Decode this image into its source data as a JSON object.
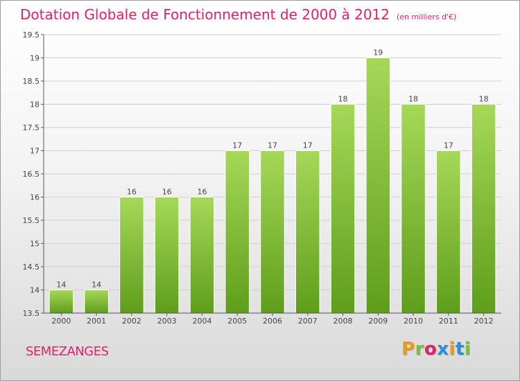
{
  "header": {
    "title": "Dotation Globale de Fonctionnement de 2000 à 2012",
    "subtitle": "(en milliers d'€)"
  },
  "footer": {
    "commune": "SEMEZANGES",
    "logo_text": "Proxiti",
    "logo_colors": [
      "#e69a1f",
      "#7dbf3a",
      "#e0206a",
      "#2a8fd8",
      "#e69a1f",
      "#2a8fd8",
      "#7dbf3a"
    ]
  },
  "colors": {
    "bar_top": "#a6d858",
    "bar_bottom": "#5e9e1a",
    "title": "#e0206a"
  },
  "chart_data": {
    "type": "bar",
    "title": "Dotation Globale de Fonctionnement de 2000 à 2012",
    "subtitle": "(en milliers d'€)",
    "categories": [
      "2000",
      "2001",
      "2002",
      "2003",
      "2004",
      "2005",
      "2006",
      "2007",
      "2008",
      "2009",
      "2010",
      "2011",
      "2012"
    ],
    "values": [
      14,
      14,
      16,
      16,
      16,
      17,
      17,
      17,
      18,
      19,
      18,
      17,
      18
    ],
    "data_labels": [
      "14",
      "14",
      "16",
      "16",
      "16",
      "17",
      "17",
      "17",
      "18",
      "19",
      "18",
      "17",
      "18"
    ],
    "y_ticks": [
      "13.5",
      "14",
      "14.5",
      "15",
      "15.5",
      "16",
      "16.5",
      "17",
      "17.5",
      "18",
      "18.5",
      "19",
      "19.5"
    ],
    "ylim": [
      13.5,
      19.5
    ],
    "xlabel": "",
    "ylabel": "",
    "grid": true
  }
}
